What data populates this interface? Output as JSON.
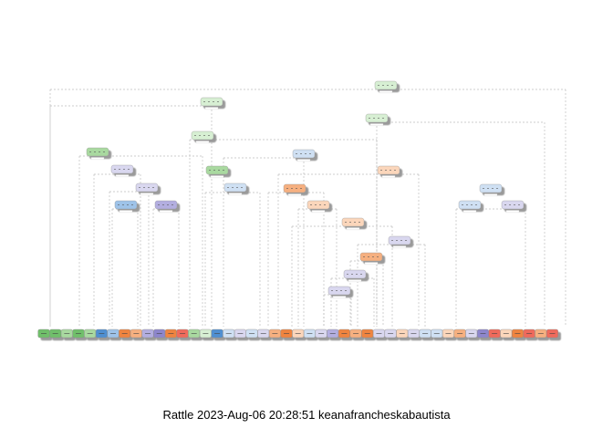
{
  "caption": "Rattle 2023-Aug-06 20:28:51 keanafrancheskabautista",
  "colors": {
    "green": "#a9d9a0",
    "light_green": "#d7efd3",
    "blue": "#9ec3e9",
    "light_blue": "#cfe0f3",
    "orange": "#f6b080",
    "light_orange": "#fbd6bb",
    "purple": "#b3aee0",
    "light_purple": "#d9d7ef",
    "red": "#ef6a5b",
    "dark_green": "#6fbf6a",
    "dark_blue": "#4f8fd1",
    "dark_orange": "#ef8440",
    "dark_purple": "#8d86cc",
    "edge": "#bdbdbd"
  },
  "leaf_palette": [
    "dark_green",
    "dark_green",
    "green",
    "dark_green",
    "green",
    "dark_blue",
    "blue",
    "dark_orange",
    "orange",
    "purple",
    "dark_purple",
    "dark_orange",
    "red",
    "green",
    "light_green",
    "dark_blue",
    "light_blue",
    "light_purple",
    "light_blue",
    "light_purple",
    "orange",
    "dark_orange",
    "light_orange",
    "light_blue",
    "light_purple",
    "purple",
    "dark_orange",
    "orange",
    "dark_orange",
    "light_purple",
    "light_purple",
    "light_orange",
    "light_purple",
    "light_blue",
    "light_blue",
    "light_orange",
    "orange",
    "light_purple",
    "dark_purple",
    "red",
    "light_orange",
    "dark_orange",
    "red",
    "orange",
    "red"
  ]
}
